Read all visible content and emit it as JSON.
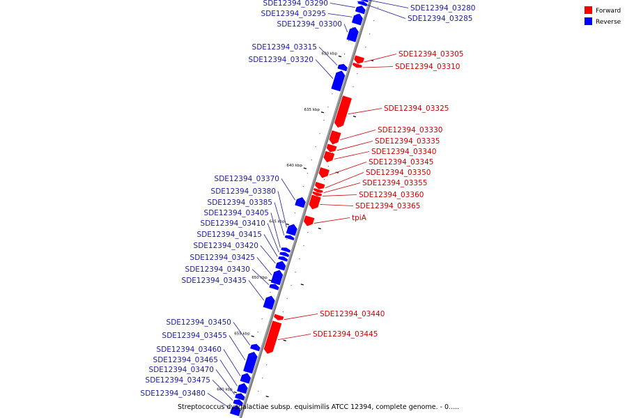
{
  "caption": "Streptococcus dysgalactiae subsp. equisimilis ATCC 12394, complete genome. - 0.....",
  "legend": [
    {
      "label": "Forward",
      "color": "#ff0000"
    },
    {
      "label": "Reverse",
      "color": "#0000ff"
    }
  ],
  "colors": {
    "forward": "#ff0000",
    "reverse": "#0000ff",
    "forward_label": "#cc0000",
    "reverse_label": "#1a1a9e",
    "backbone": "#999999"
  },
  "axis": {
    "start_kbp": 625,
    "end_kbp": 662.2,
    "ticks": [
      {
        "kbp": 630,
        "label": "630 kbp"
      },
      {
        "kbp": 635,
        "label": "635 kbp"
      },
      {
        "kbp": 640,
        "label": "640 kbp"
      },
      {
        "kbp": 645,
        "label": "645 kbp"
      },
      {
        "kbp": 650,
        "label": "650 kbp"
      },
      {
        "kbp": 655,
        "label": "655 kbp"
      },
      {
        "kbp": 660,
        "label": "660 kbp"
      }
    ]
  },
  "genes": [
    {
      "name": "SDE12394_03280",
      "strand": "reverse",
      "start": 625.05,
      "end": 625.25
    },
    {
      "name": "SDE12394_03285",
      "strand": "reverse",
      "start": 625.3,
      "end": 625.6
    },
    {
      "name": "SDE12394_03290",
      "strand": "reverse",
      "start": 625.7,
      "end": 626.3
    },
    {
      "name": "SDE12394_03295",
      "strand": "reverse",
      "start": 626.4,
      "end": 627.3
    },
    {
      "name": "SDE12394_03300",
      "strand": "reverse",
      "start": 627.6,
      "end": 628.8
    },
    {
      "name": "SDE12394_03305",
      "strand": "forward",
      "start": 629.9,
      "end": 630.5
    },
    {
      "name": "SDE12394_03310",
      "strand": "forward",
      "start": 630.55,
      "end": 630.85
    },
    {
      "name": "SDE12394_03315",
      "strand": "reverse",
      "start": 630.9,
      "end": 631.4
    },
    {
      "name": "SDE12394_03320",
      "strand": "reverse",
      "start": 631.5,
      "end": 633.2
    },
    {
      "name": "SDE12394_03325",
      "strand": "forward",
      "start": 633.5,
      "end": 636.2
    },
    {
      "name": "SDE12394_03330",
      "strand": "forward",
      "start": 636.6,
      "end": 637.7
    },
    {
      "name": "SDE12394_03335",
      "strand": "forward",
      "start": 637.8,
      "end": 638.4
    },
    {
      "name": "SDE12394_03340",
      "strand": "forward",
      "start": 638.45,
      "end": 639.3
    },
    {
      "name": "SDE12394_03345",
      "strand": "forward",
      "start": 639.9,
      "end": 640.7
    },
    {
      "name": "SDE12394_03350",
      "strand": "forward",
      "start": 641.2,
      "end": 641.7
    },
    {
      "name": "SDE12394_03355",
      "strand": "forward",
      "start": 641.75,
      "end": 642.0
    },
    {
      "name": "SDE12394_03360",
      "strand": "forward",
      "start": 642.05,
      "end": 642.3
    },
    {
      "name": "SDE12394_03365",
      "strand": "forward",
      "start": 642.35,
      "end": 643.5
    },
    {
      "name": "SDE12394_03370",
      "strand": "reverse",
      "start": 642.8,
      "end": 643.6
    },
    {
      "name": "tpiA",
      "strand": "forward",
      "start": 644.2,
      "end": 645.0
    },
    {
      "name": "SDE12394_03380",
      "strand": "reverse",
      "start": 645.2,
      "end": 646.1
    },
    {
      "name": "SDE12394_03385",
      "strand": "reverse",
      "start": 646.2,
      "end": 646.5
    },
    {
      "name": "SDE12394_03405",
      "strand": "reverse",
      "start": 647.3,
      "end": 647.6
    },
    {
      "name": "SDE12394_03410",
      "strand": "reverse",
      "start": 647.7,
      "end": 648.0
    },
    {
      "name": "SDE12394_03415",
      "strand": "reverse",
      "start": 648.1,
      "end": 648.4
    },
    {
      "name": "SDE12394_03420",
      "strand": "reverse",
      "start": 648.5,
      "end": 649.2
    },
    {
      "name": "SDE12394_03425",
      "strand": "reverse",
      "start": 649.3,
      "end": 650.5
    },
    {
      "name": "SDE12394_03430",
      "strand": "reverse",
      "start": 650.55,
      "end": 650.95
    },
    {
      "name": "SDE12394_03435",
      "strand": "reverse",
      "start": 651.6,
      "end": 652.7
    },
    {
      "name": "SDE12394_03440",
      "strand": "forward",
      "start": 653.0,
      "end": 653.4
    },
    {
      "name": "SDE12394_03445",
      "strand": "forward",
      "start": 653.6,
      "end": 656.4
    },
    {
      "name": "SDE12394_03450",
      "strand": "reverse",
      "start": 655.9,
      "end": 656.4
    },
    {
      "name": "SDE12394_03455",
      "strand": "reverse",
      "start": 656.6,
      "end": 658.4
    },
    {
      "name": "SDE12394_03460",
      "strand": "reverse",
      "start": 658.5,
      "end": 659.3
    },
    {
      "name": "SDE12394_03465",
      "strand": "reverse",
      "start": 659.4,
      "end": 660.2
    },
    {
      "name": "SDE12394_03470",
      "strand": "reverse",
      "start": 660.3,
      "end": 660.8
    },
    {
      "name": "SDE12394_03475",
      "strand": "reverse",
      "start": 660.85,
      "end": 661.3
    },
    {
      "name": "SDE12394_03480",
      "strand": "reverse",
      "start": 661.4,
      "end": 662.2
    }
  ]
}
